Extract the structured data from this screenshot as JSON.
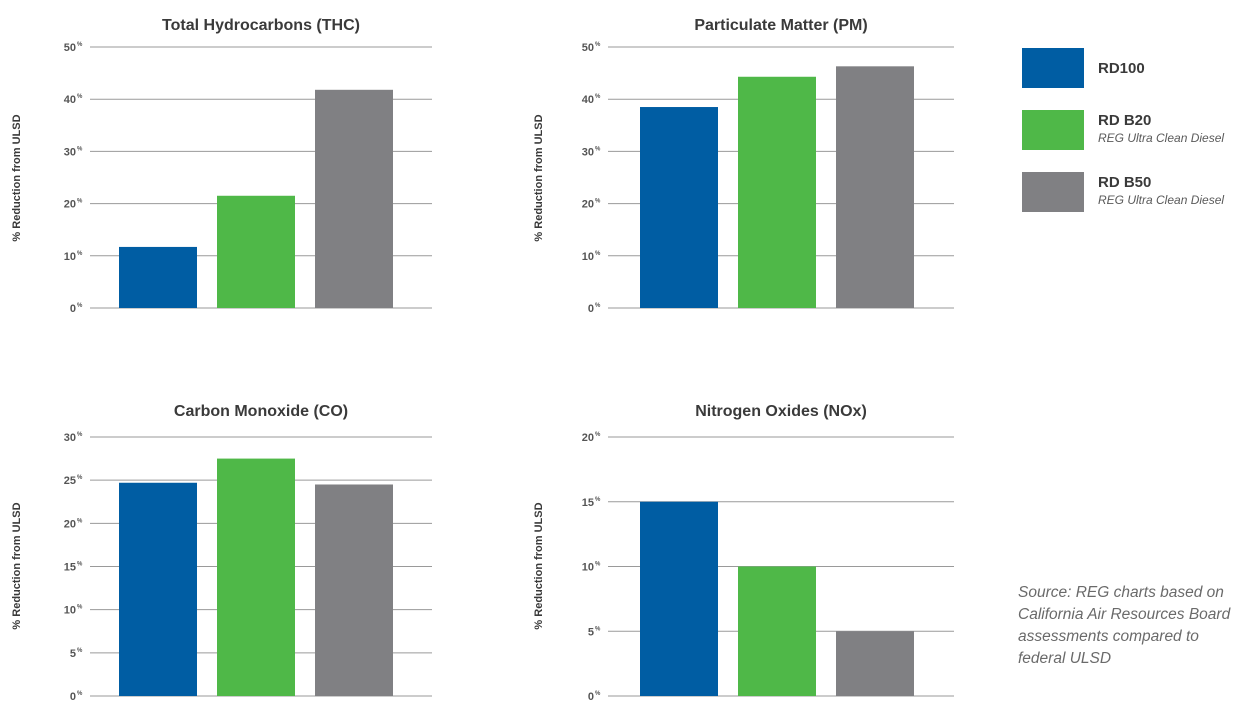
{
  "chart_data": [
    {
      "type": "bar",
      "title": "Total Hydrocarbons (THC)",
      "ylabel": "% Reduction from ULSD",
      "categories": [
        "RD100",
        "RD B20",
        "RD B50"
      ],
      "values": [
        11.7,
        21.5,
        41.8
      ],
      "ylim": [
        0,
        50
      ],
      "yticks": [
        0,
        10,
        20,
        30,
        40,
        50
      ],
      "ytick_labels": [
        "0",
        "10",
        "20",
        "30",
        "40",
        "50"
      ],
      "tick_suffix": "%",
      "grid": true
    },
    {
      "type": "bar",
      "title": "Particulate Matter (PM)",
      "ylabel": "% Reduction from ULSD",
      "categories": [
        "RD100",
        "RD B20",
        "RD B50"
      ],
      "values": [
        38.5,
        44.3,
        46.3
      ],
      "ylim": [
        0,
        50
      ],
      "yticks": [
        0,
        10,
        20,
        30,
        40,
        50
      ],
      "ytick_labels": [
        "0",
        "10",
        "20",
        "30",
        "40",
        "50"
      ],
      "tick_suffix": "%",
      "grid": true
    },
    {
      "type": "bar",
      "title": "Carbon Monoxide (CO)",
      "ylabel": "% Reduction from ULSD",
      "categories": [
        "RD100",
        "RD B20",
        "RD B50"
      ],
      "values": [
        24.7,
        27.5,
        24.5
      ],
      "ylim": [
        0,
        30
      ],
      "yticks": [
        0,
        5,
        10,
        15,
        20,
        25,
        30
      ],
      "ytick_labels": [
        "0",
        "5",
        "10",
        "15",
        "20",
        "25",
        "30"
      ],
      "tick_suffix": "%",
      "grid": true
    },
    {
      "type": "bar",
      "title": "Nitrogen Oxides (NOx)",
      "ylabel": "% Reduction from ULSD",
      "categories": [
        "RD100",
        "RD B20",
        "RD B50"
      ],
      "values": [
        15,
        10,
        5
      ],
      "ylim": [
        0,
        20
      ],
      "yticks": [
        0,
        5,
        10,
        15,
        20
      ],
      "ytick_labels": [
        "0",
        "5",
        "10",
        "15",
        "20"
      ],
      "tick_suffix": "%",
      "grid": true
    }
  ],
  "legend": {
    "placement": "right",
    "items": [
      {
        "name": "RD100",
        "subtitle": "",
        "color": "#005da3"
      },
      {
        "name": "RD B20",
        "subtitle": "REG Ultra Clean Diesel",
        "color": "#4fb848"
      },
      {
        "name": "RD B50",
        "subtitle": "REG Ultra Clean Diesel",
        "color": "#808083"
      }
    ]
  },
  "source_note": "Source: REG charts based on California Air Resources Board assessments compared to federal ULSD"
}
